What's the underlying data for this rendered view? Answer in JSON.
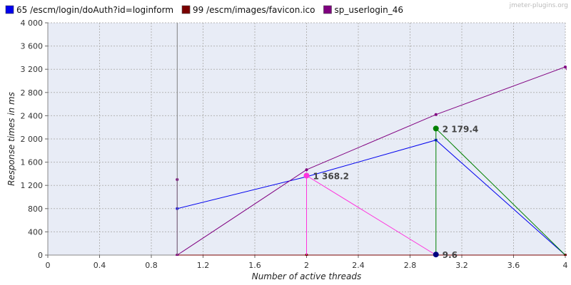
{
  "chart_data": {
    "type": "line",
    "watermark": "jmeter-plugins.org",
    "xlabel": "Number of active threads",
    "ylabel": "Response times in ms",
    "xlim": [
      0,
      4
    ],
    "ylim": [
      0,
      4000
    ],
    "x_ticks": [
      {
        "value": 0,
        "label": "0"
      },
      {
        "value": 0.4,
        "label": "0.4"
      },
      {
        "value": 0.8,
        "label": "0.8"
      },
      {
        "value": 1.2,
        "label": "1.2"
      },
      {
        "value": 1.6,
        "label": "1.6"
      },
      {
        "value": 2.0,
        "label": "2"
      },
      {
        "value": 2.4,
        "label": "2.4"
      },
      {
        "value": 2.8,
        "label": "2.8"
      },
      {
        "value": 3.2,
        "label": "3.2"
      },
      {
        "value": 3.6,
        "label": "3.6"
      },
      {
        "value": 4.0,
        "label": "4"
      }
    ],
    "y_ticks": [
      {
        "value": 0,
        "label": "0"
      },
      {
        "value": 400,
        "label": "400"
      },
      {
        "value": 800,
        "label": "800"
      },
      {
        "value": 1200,
        "label": "1 200"
      },
      {
        "value": 1600,
        "label": "1 600"
      },
      {
        "value": 2000,
        "label": "2 000"
      },
      {
        "value": 2400,
        "label": "2 400"
      },
      {
        "value": 2800,
        "label": "2 800"
      },
      {
        "value": 3200,
        "label": "3 200"
      },
      {
        "value": 3600,
        "label": "3 600"
      },
      {
        "value": 4000,
        "label": "4 000"
      }
    ],
    "grid": true,
    "legend_position": "top",
    "series": [
      {
        "name": "65 /escm/login/doAuth?id=loginform",
        "color": "#0000ee",
        "legend": true,
        "points": [
          [
            1,
            800
          ],
          [
            2,
            1350
          ],
          [
            3,
            1980
          ],
          [
            4,
            0
          ]
        ]
      },
      {
        "name": "99 /escm/images/favicon.ico",
        "color": "#7a0000",
        "legend": true,
        "points": [
          [
            1,
            0
          ],
          [
            2,
            0
          ],
          [
            3,
            0
          ],
          [
            4,
            0
          ]
        ]
      },
      {
        "name": "sp_userlogin_46",
        "color": "#800080",
        "legend": true,
        "points": [
          [
            1,
            1300
          ],
          [
            1,
            0
          ],
          [
            2,
            1470
          ],
          [
            3,
            2420
          ],
          [
            4,
            3240
          ],
          [
            4.05,
            3020
          ]
        ]
      },
      {
        "name": "",
        "color": "#808080",
        "legend": false,
        "points": [
          [
            1,
            4000
          ],
          [
            1,
            0
          ]
        ]
      },
      {
        "name": "",
        "color": "#ff33dd",
        "legend": false,
        "points": [
          [
            2,
            0
          ],
          [
            2,
            1368.2
          ],
          [
            3,
            0
          ]
        ]
      },
      {
        "name": "",
        "color": "#008000",
        "legend": false,
        "points": [
          [
            3,
            0
          ],
          [
            3,
            2179.4
          ],
          [
            4,
            0
          ]
        ]
      }
    ],
    "annotations": [
      {
        "x": 2,
        "y": 1368.2,
        "label": "1 368.2",
        "color": "#ff33dd"
      },
      {
        "x": 3,
        "y": 2179.4,
        "label": "2 179.4",
        "color": "#008000"
      },
      {
        "x": 3,
        "y": 9.6,
        "label": "9.6",
        "color": "#000080"
      }
    ]
  }
}
